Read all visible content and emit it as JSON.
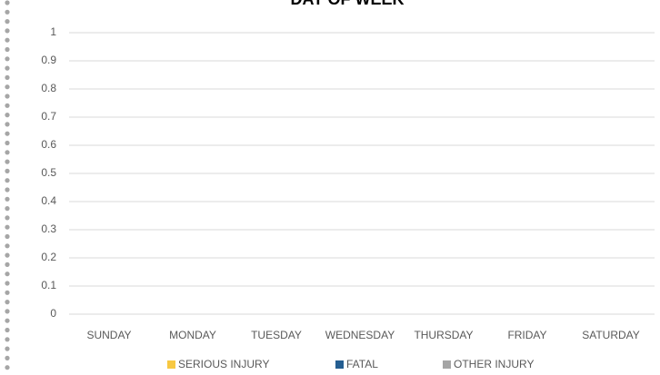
{
  "chart_data": {
    "type": "bar",
    "title": "DAY OF WEEK",
    "categories": [
      "SUNDAY",
      "MONDAY",
      "TUESDAY",
      "WEDNESDAY",
      "THURSDAY",
      "FRIDAY",
      "SATURDAY"
    ],
    "series": [
      {
        "name": "SERIOUS INJURY",
        "color": "#f7c842",
        "values": [
          0,
          0,
          0,
          0,
          0,
          0,
          0
        ]
      },
      {
        "name": "FATAL",
        "color": "#255e91",
        "values": [
          0,
          0,
          0,
          0,
          0,
          0,
          0
        ]
      },
      {
        "name": "OTHER INJURY",
        "color": "#a5a5a5",
        "values": [
          0,
          0,
          0,
          0,
          0,
          0,
          0
        ]
      }
    ],
    "ylim": [
      0,
      1
    ],
    "yticks": [
      0,
      0.1,
      0.2,
      0.3,
      0.4,
      0.5,
      0.6,
      0.7,
      0.8,
      0.9,
      1
    ],
    "grid": true,
    "legend": "bottom"
  }
}
